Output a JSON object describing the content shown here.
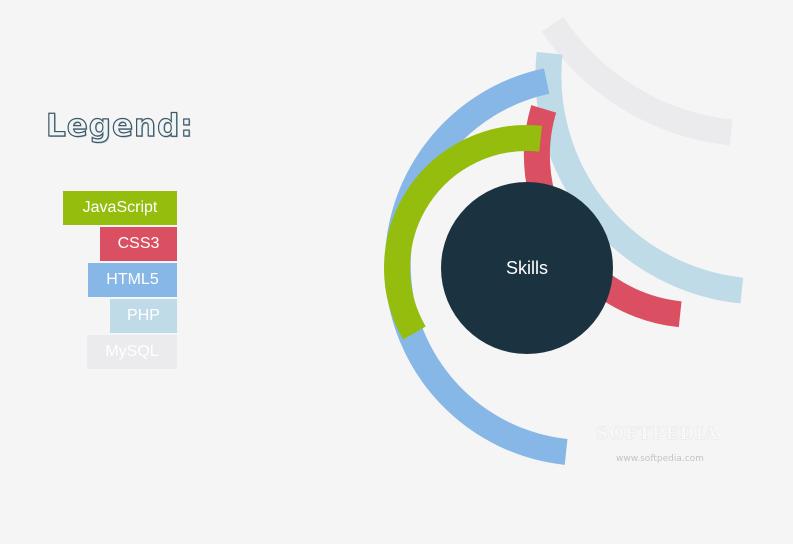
{
  "legend": {
    "title": "Legend:"
  },
  "center_label": "Skills",
  "watermark": {
    "brand": "SOFTPEDIA",
    "url": "www.softpedia.com"
  },
  "chart_data": {
    "type": "radial-bar",
    "title": "",
    "center_label": "Skills",
    "series": [
      {
        "name": "JavaScript",
        "value": 35,
        "color": "#95bd0e"
      },
      {
        "name": "CSS3",
        "value": 72,
        "color": "#da4f62"
      },
      {
        "name": "HTML5",
        "value": 55,
        "color": "#86b7e6"
      },
      {
        "name": "PHP",
        "value": 75,
        "color": "#c0dbe8"
      },
      {
        "name": "MySQL",
        "value": 86,
        "color": "#ebebee"
      }
    ],
    "track_color": "#ebebee",
    "legend_placement": "left"
  }
}
